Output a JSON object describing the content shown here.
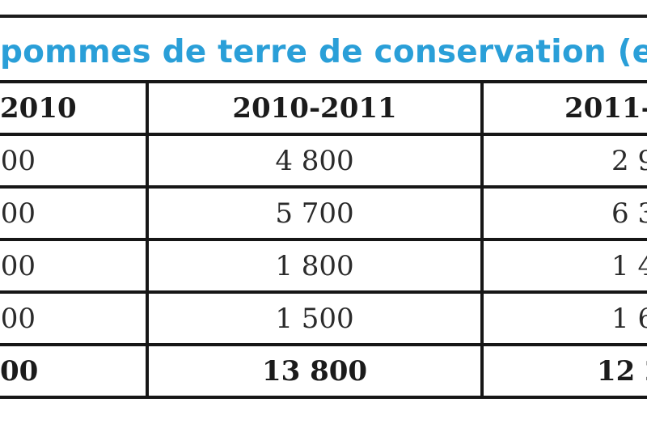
{
  "title": "pommes de terre de conservation (en",
  "columns": [
    "2010",
    "2010-2011",
    "2011-"
  ],
  "rows": [
    [
      "00",
      "4 800",
      "2 9"
    ],
    [
      "00",
      "5 700",
      "6 3"
    ],
    [
      "00",
      "1 800",
      "1 4"
    ],
    [
      "00",
      "1 500",
      "1 6"
    ]
  ],
  "total": [
    "00",
    "13 800",
    "12 2"
  ],
  "colors": {
    "title": "#2a9fd8",
    "border": "#161616",
    "text": "#2b2b2b"
  }
}
